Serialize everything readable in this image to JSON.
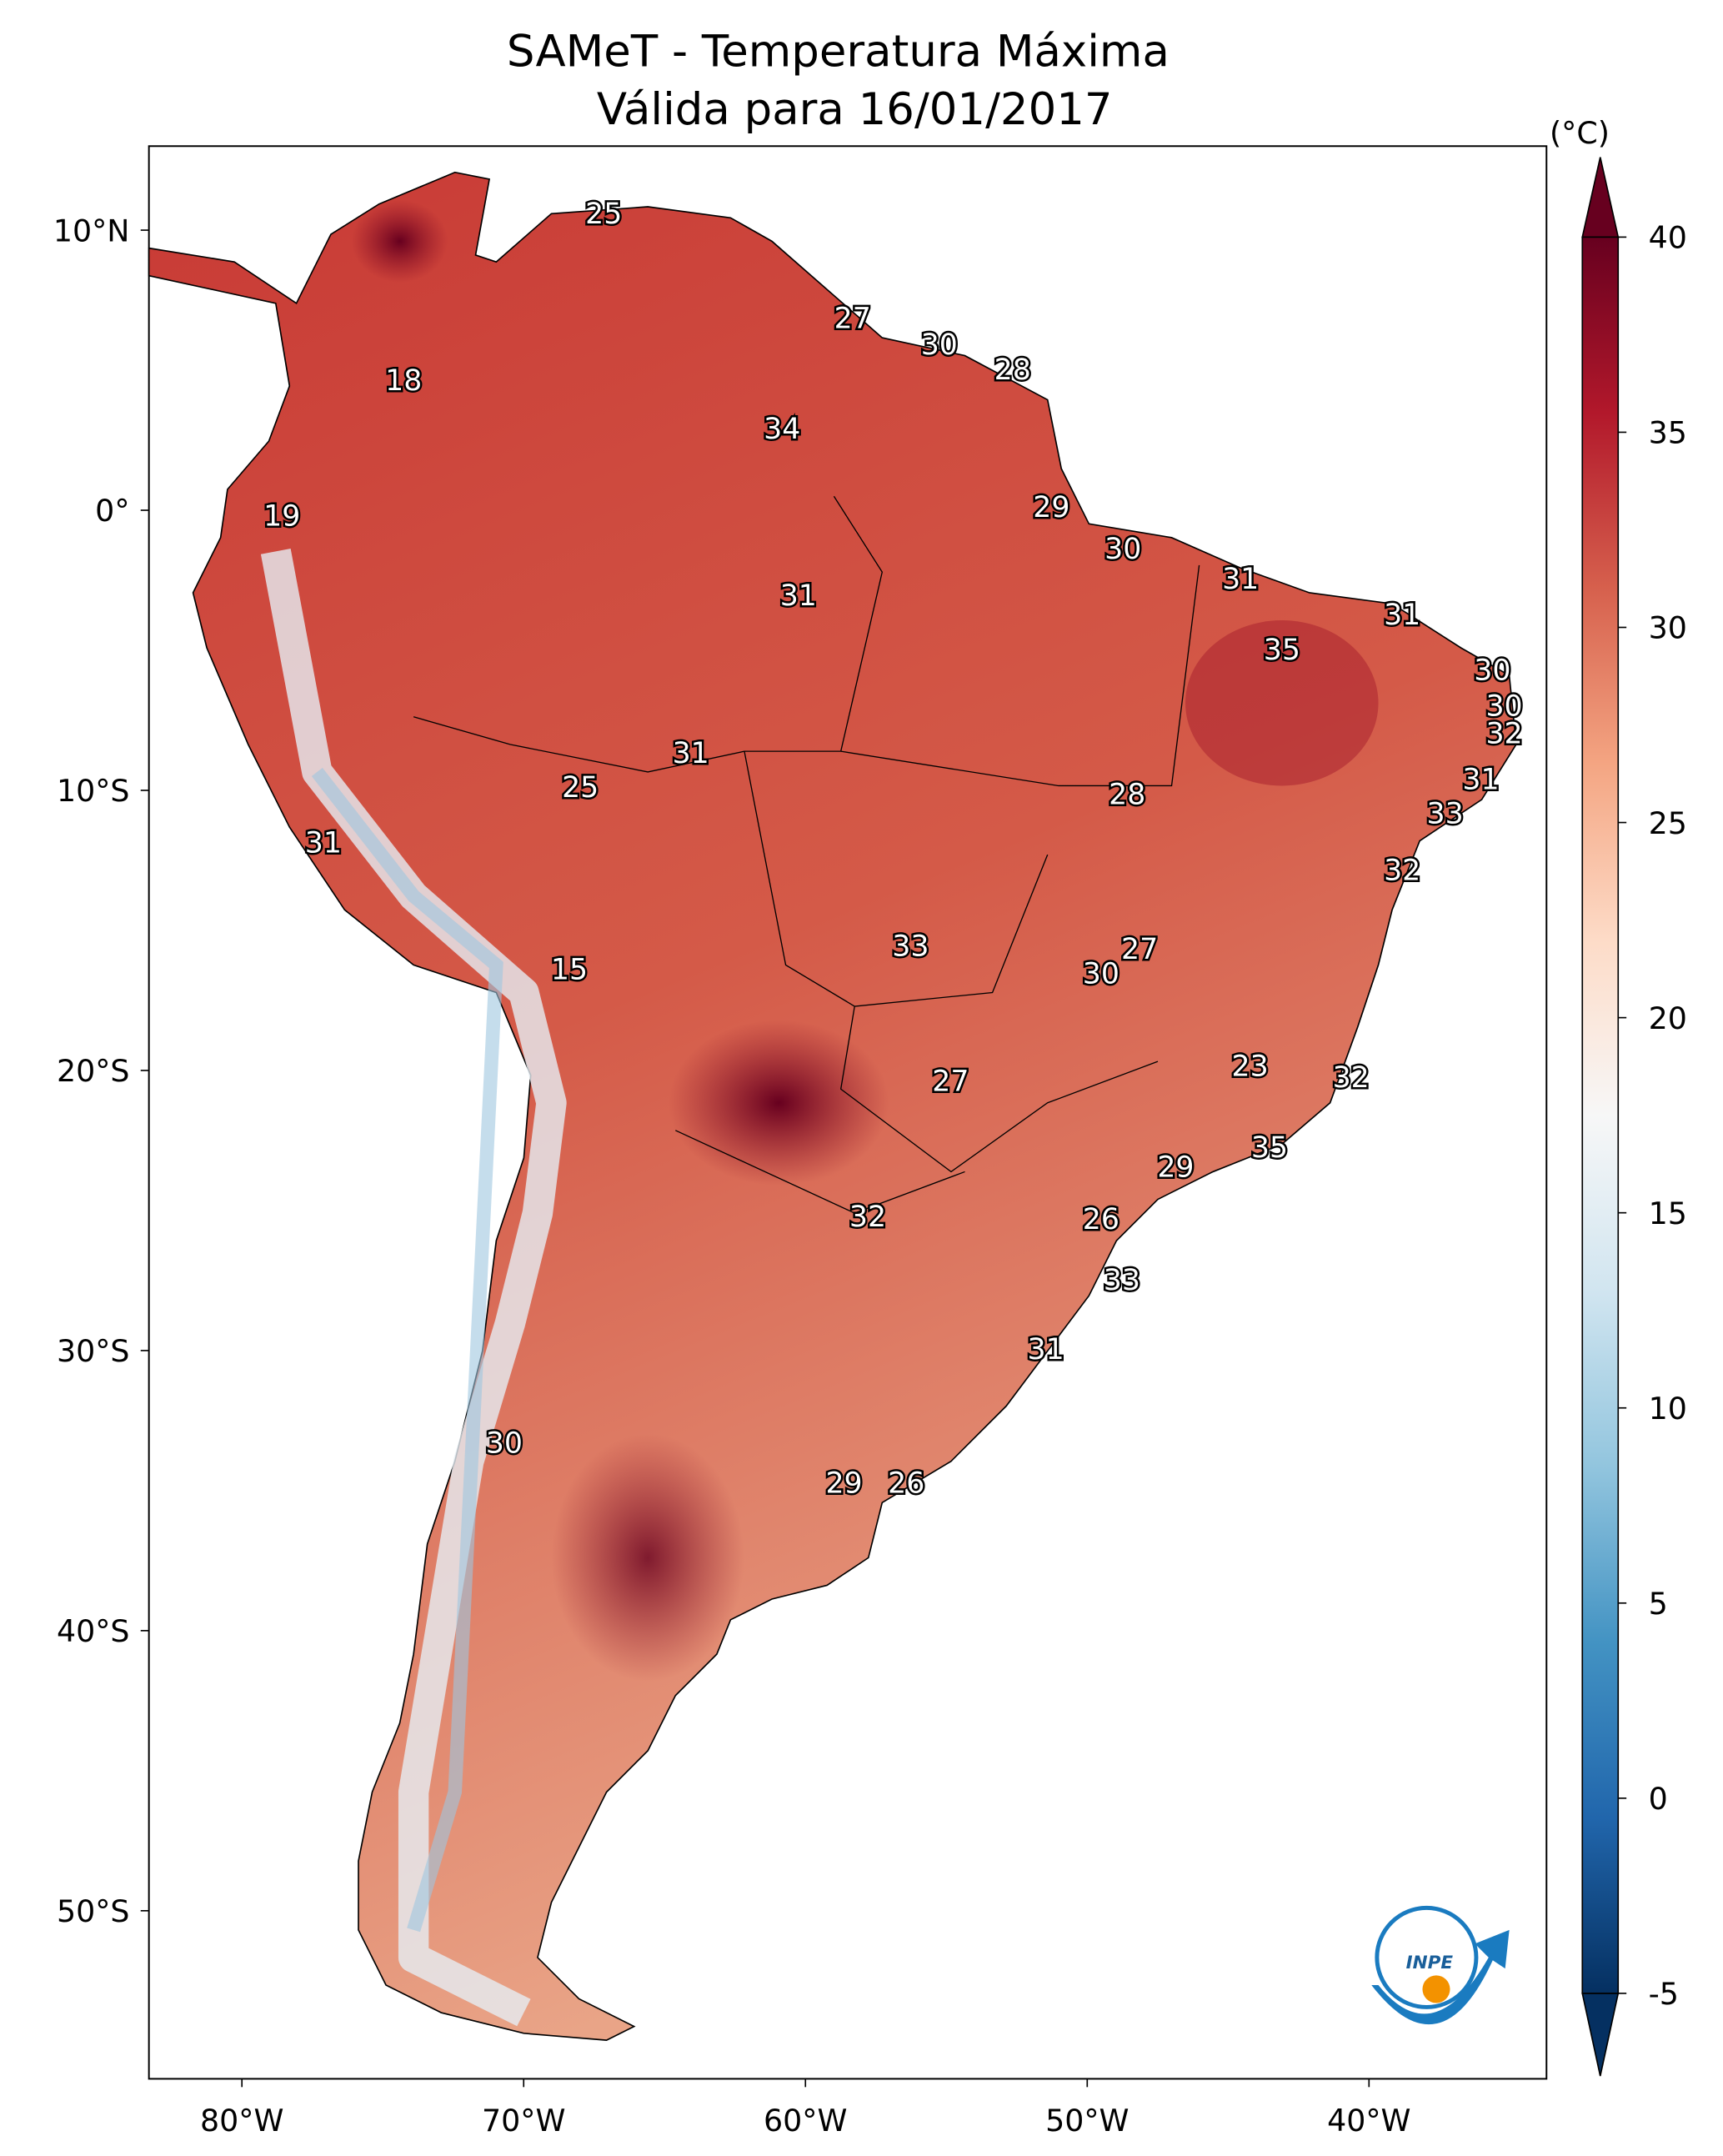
{
  "chart_data": {
    "type": "map",
    "title": "SAMeT - Temperatura Máxima",
    "subtitle": "Válida para 16/01/2017",
    "xlim": [
      -83.3,
      -33.7
    ],
    "ylim": [
      -56,
      13
    ],
    "xticks": [
      {
        "value": -80,
        "label": "80°W"
      },
      {
        "value": -70,
        "label": "70°W"
      },
      {
        "value": -60,
        "label": "60°W"
      },
      {
        "value": -50,
        "label": "50°W"
      },
      {
        "value": -40,
        "label": "40°W"
      }
    ],
    "yticks": [
      {
        "value": 10,
        "label": "10°N"
      },
      {
        "value": 0,
        "label": "0°"
      },
      {
        "value": -10,
        "label": "10°S"
      },
      {
        "value": -20,
        "label": "20°S"
      },
      {
        "value": -30,
        "label": "30°S"
      },
      {
        "value": -40,
        "label": "40°S"
      },
      {
        "value": -50,
        "label": "50°S"
      }
    ],
    "colorbar": {
      "label": "(°C)",
      "clim": [
        -5,
        40
      ],
      "ticks": [
        -5,
        0,
        5,
        10,
        15,
        20,
        25,
        30,
        35,
        40
      ],
      "colormap": [
        "#053061",
        "#2166ac",
        "#4393c3",
        "#92c5de",
        "#d1e5f0",
        "#f7f7f7",
        "#fddbc7",
        "#f4a582",
        "#d6604d",
        "#b2182b",
        "#67001f"
      ]
    },
    "logo_text": "INPE",
    "annotations": [
      {
        "value": 25,
        "lon": -67.16,
        "lat": 10.64
      },
      {
        "value": 27,
        "lon": -58.33,
        "lat": 6.9
      },
      {
        "value": 30,
        "lon": -55.25,
        "lat": 5.96
      },
      {
        "value": 28,
        "lon": -52.65,
        "lat": 5.07
      },
      {
        "value": 18,
        "lon": -74.26,
        "lat": 4.68
      },
      {
        "value": 34,
        "lon": -60.83,
        "lat": 2.96
      },
      {
        "value": 19,
        "lon": -78.58,
        "lat": -0.15
      },
      {
        "value": 29,
        "lon": -51.27,
        "lat": 0.15
      },
      {
        "value": 30,
        "lon": -48.73,
        "lat": -1.33
      },
      {
        "value": 31,
        "lon": -44.56,
        "lat": -2.41
      },
      {
        "value": 31,
        "lon": -60.25,
        "lat": -3.0
      },
      {
        "value": 31,
        "lon": -38.82,
        "lat": -3.69
      },
      {
        "value": 35,
        "lon": -43.09,
        "lat": -4.93
      },
      {
        "value": 30,
        "lon": -35.62,
        "lat": -5.67
      },
      {
        "value": 30,
        "lon": -35.2,
        "lat": -6.95
      },
      {
        "value": 32,
        "lon": -35.2,
        "lat": -7.93
      },
      {
        "value": 31,
        "lon": -64.07,
        "lat": -8.62
      },
      {
        "value": 31,
        "lon": -36.03,
        "lat": -9.56
      },
      {
        "value": 28,
        "lon": -48.58,
        "lat": -10.1
      },
      {
        "value": 25,
        "lon": -67.99,
        "lat": -9.85
      },
      {
        "value": 33,
        "lon": -37.3,
        "lat": -10.79
      },
      {
        "value": 31,
        "lon": -77.11,
        "lat": -11.82
      },
      {
        "value": 32,
        "lon": -38.82,
        "lat": -12.81
      },
      {
        "value": 33,
        "lon": -56.27,
        "lat": -15.52
      },
      {
        "value": 27,
        "lon": -48.14,
        "lat": -15.62
      },
      {
        "value": 15,
        "lon": -68.38,
        "lat": -16.35
      },
      {
        "value": 30,
        "lon": -49.51,
        "lat": -16.5
      },
      {
        "value": 23,
        "lon": -44.22,
        "lat": -19.8
      },
      {
        "value": 27,
        "lon": -54.85,
        "lat": -20.34
      },
      {
        "value": 32,
        "lon": -40.64,
        "lat": -20.2
      },
      {
        "value": 35,
        "lon": -43.53,
        "lat": -22.7
      },
      {
        "value": 29,
        "lon": -46.86,
        "lat": -23.4
      },
      {
        "value": 32,
        "lon": -57.79,
        "lat": -25.17
      },
      {
        "value": 26,
        "lon": -49.51,
        "lat": -25.27
      },
      {
        "value": 33,
        "lon": -48.77,
        "lat": -27.44
      },
      {
        "value": 31,
        "lon": -51.47,
        "lat": -29.9
      },
      {
        "value": 30,
        "lon": -70.69,
        "lat": -33.25
      },
      {
        "value": 29,
        "lon": -58.63,
        "lat": -34.68
      },
      {
        "value": 26,
        "lon": -56.42,
        "lat": -34.68
      }
    ]
  }
}
